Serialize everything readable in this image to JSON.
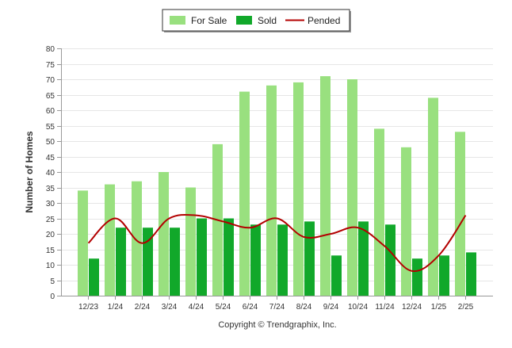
{
  "chart_data": {
    "type": "bar",
    "categories": [
      "12/23",
      "1/24",
      "2/24",
      "3/24",
      "4/24",
      "5/24",
      "6/24",
      "7/24",
      "8/24",
      "9/24",
      "10/24",
      "11/24",
      "12/24",
      "1/25",
      "2/25"
    ],
    "series": [
      {
        "name": "For Sale",
        "type": "bar",
        "color": "#99e07f",
        "values": [
          34,
          36,
          37,
          40,
          35,
          49,
          66,
          68,
          69,
          71,
          70,
          54,
          48,
          64,
          53
        ]
      },
      {
        "name": "Sold",
        "type": "bar",
        "color": "#11a82a",
        "values": [
          12,
          22,
          22,
          22,
          25,
          25,
          23,
          23,
          24,
          13,
          24,
          23,
          12,
          13,
          14
        ]
      },
      {
        "name": "Pended",
        "type": "line",
        "color": "#b30000",
        "values": [
          17,
          25,
          17,
          25,
          26,
          24,
          22,
          25,
          19,
          20,
          22,
          16,
          8,
          13,
          26
        ]
      }
    ],
    "ylabel": "Number of Homes",
    "ylim": [
      0,
      80
    ],
    "yticks": [
      0,
      5,
      10,
      15,
      20,
      25,
      30,
      35,
      40,
      45,
      50,
      55,
      60,
      65,
      70,
      75,
      80
    ],
    "grid": true,
    "legend_position": "top-center",
    "footer": "Copyright © Trendgraphix, Inc."
  }
}
